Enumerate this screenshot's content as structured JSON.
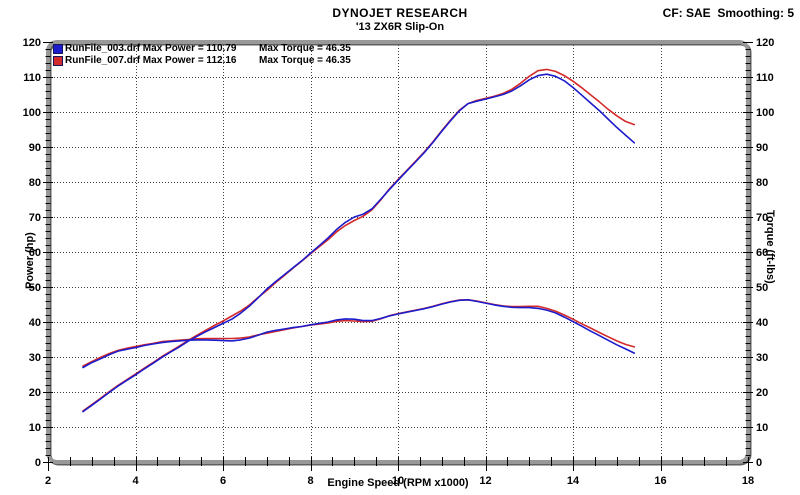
{
  "header": {
    "title": "DYNOJET RESEARCH",
    "subtitle": "'13 ZX6R Slip-On",
    "correction_note": "CF: SAE  Smoothing: 5"
  },
  "chart_data": {
    "type": "line",
    "title": "DYNOJET RESEARCH",
    "subtitle": "'13 ZX6R Slip-On",
    "note": "CF: SAE  Smoothing: 5",
    "x_axis": {
      "label": "Engine Speed (RPM x1000)",
      "min": 2,
      "max": 18,
      "major_tick": 2,
      "minor_tick": 0.5,
      "tick_labels": [
        2,
        4,
        6,
        8,
        10,
        12,
        14,
        16,
        18
      ],
      "grid_ticks": [
        4,
        6,
        8,
        10,
        12,
        14,
        16
      ],
      "grid": "dotted"
    },
    "y_axis": {
      "label_left": "Power (hp)",
      "label_right": "Torque (ft-lbs)",
      "min": 0,
      "max": 120,
      "major_tick": 10,
      "minor_tick": 2,
      "tick_labels": [
        0,
        10,
        20,
        30,
        40,
        50,
        60,
        70,
        80,
        90,
        100,
        110,
        120
      ],
      "grid_ticks": [
        10,
        20,
        30,
        40,
        50,
        60,
        70,
        80,
        90,
        100,
        110
      ],
      "grid": "dotted"
    },
    "legend": [
      {
        "color": "#1c1ccc",
        "text_main": "RunFile_003.drf Max Power = 110.79",
        "text_torque": "Max Torque = 46.35"
      },
      {
        "color": "#d42a2a",
        "text_main": "RunFile_007.drf Max Power = 112.16",
        "text_torque": "Max Torque = 46.35"
      }
    ],
    "legend_position": "top-left-inside",
    "rpm": [
      2.8,
      3,
      3.2,
      3.4,
      3.6,
      3.8,
      4,
      4.2,
      4.4,
      4.6,
      4.8,
      5,
      5.2,
      5.4,
      5.6,
      5.8,
      6,
      6.2,
      6.4,
      6.6,
      6.8,
      7,
      7.2,
      7.4,
      7.6,
      7.8,
      8,
      8.2,
      8.4,
      8.6,
      8.8,
      9,
      9.2,
      9.4,
      9.6,
      9.8,
      10,
      10.2,
      10.4,
      10.6,
      10.8,
      11,
      11.2,
      11.4,
      11.6,
      11.8,
      12,
      12.2,
      12.4,
      12.6,
      12.8,
      13,
      13.2,
      13.4,
      13.6,
      13.8,
      14,
      14.2,
      14.4,
      14.6,
      14.8,
      15,
      15.2,
      15.4
    ],
    "series": [
      {
        "name": "RunFile_007 Power (hp)",
        "run": "RunFile_007.drf",
        "color": "#d42a2a",
        "max": 112.16,
        "values": [
          14.6,
          16.4,
          18.2,
          20.1,
          21.9,
          23.5,
          25.1,
          26.8,
          28.4,
          30.1,
          31.6,
          33.1,
          34.7,
          36.2,
          37.6,
          39,
          40.3,
          41.7,
          43.1,
          44.8,
          47,
          49,
          51.2,
          53.3,
          55.4,
          57.4,
          59.5,
          61.5,
          63.5,
          65.8,
          67.6,
          69,
          70.2,
          72,
          74.8,
          78,
          80.7,
          83.3,
          85.9,
          88.6,
          91.5,
          94.7,
          97.7,
          100.5,
          102.4,
          103.3,
          103.9,
          104.5,
          105.3,
          106.5,
          108.2,
          110.2,
          111.8,
          112.16,
          111.6,
          110.4,
          108.8,
          106.9,
          104.9,
          102.9,
          100.8,
          98.9,
          97.3,
          96.4
        ]
      },
      {
        "name": "RunFile_007 Torque (ft-lbs)",
        "run": "RunFile_007.drf",
        "color": "#d42a2a",
        "max": 46.35,
        "values": [
          27.4,
          28.7,
          29.9,
          31,
          31.9,
          32.5,
          33,
          33.5,
          33.9,
          34.4,
          34.6,
          34.8,
          35,
          35.2,
          35.3,
          35.3,
          35.3,
          35.3,
          35.4,
          35.7,
          36.3,
          36.8,
          37.3,
          37.8,
          38.3,
          38.7,
          39.1,
          39.4,
          39.7,
          40.2,
          40.4,
          40.3,
          40.1,
          40.2,
          40.9,
          41.8,
          42.4,
          42.9,
          43.4,
          43.9,
          44.5,
          45.2,
          45.8,
          46.3,
          46.35,
          46,
          45.5,
          45,
          44.6,
          44.4,
          44.4,
          44.5,
          44.5,
          43.9,
          43.1,
          42,
          40.8,
          39.5,
          38.3,
          37,
          35.8,
          34.6,
          33.6,
          32.9
        ]
      },
      {
        "name": "RunFile_003 Power (hp)",
        "run": "RunFile_003.drf",
        "color": "#1c1ccc",
        "max": 110.79,
        "values": [
          14.4,
          16.2,
          18,
          19.9,
          21.7,
          23.3,
          24.9,
          26.6,
          28.2,
          29.9,
          31.4,
          32.9,
          34.5,
          35.9,
          37.2,
          38.4,
          39.6,
          40.8,
          42.5,
          44.5,
          46.9,
          49.4,
          51.5,
          53.5,
          55.5,
          57.5,
          59.7,
          61.8,
          64,
          66.5,
          68.5,
          70,
          70.8,
          72.3,
          75,
          77.8,
          80.5,
          83.1,
          85.7,
          88.4,
          91.3,
          94.5,
          97.5,
          100.3,
          102.4,
          103.1,
          103.7,
          104.3,
          105,
          106,
          107.5,
          109.2,
          110.4,
          110.79,
          110.2,
          108.9,
          107,
          104.8,
          102.6,
          100.4,
          98,
          95.6,
          93.4,
          91.2
        ]
      },
      {
        "name": "RunFile_003 Torque (ft-lbs)",
        "run": "RunFile_003.drf",
        "color": "#1c1ccc",
        "max": 46.35,
        "values": [
          27,
          28.4,
          29.5,
          30.7,
          31.7,
          32.2,
          32.7,
          33.3,
          33.7,
          34.1,
          34.4,
          34.6,
          34.8,
          34.9,
          34.9,
          34.8,
          34.7,
          34.6,
          34.9,
          35.4,
          36.2,
          37.1,
          37.6,
          38,
          38.4,
          38.7,
          39.2,
          39.6,
          40,
          40.6,
          40.9,
          40.8,
          40.4,
          40.4,
          41,
          41.7,
          42.3,
          42.8,
          43.3,
          43.8,
          44.4,
          45.1,
          45.7,
          46.2,
          46.35,
          45.9,
          45.4,
          44.9,
          44.5,
          44.2,
          44.1,
          44.1,
          43.9,
          43.4,
          42.6,
          41.4,
          40.1,
          38.8,
          37.4,
          36.1,
          34.8,
          33.5,
          32.3,
          31.1
        ]
      }
    ]
  }
}
